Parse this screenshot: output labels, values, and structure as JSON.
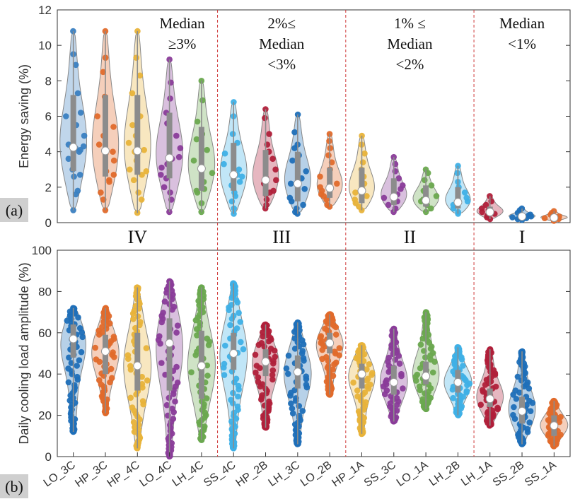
{
  "chart_data": [
    {
      "type": "violin",
      "panel_label": "(a)",
      "ylabel": "Energy saving (%)",
      "ylim": [
        0,
        12
      ],
      "yticks": [
        0,
        2,
        4,
        6,
        8,
        10,
        12
      ],
      "series": [
        {
          "name": "LO_3C",
          "color": "#3a7fc1",
          "min": 0.7,
          "max": 10.8,
          "q1": 2.9,
          "median": 4.25,
          "q3": 7.2,
          "points": [
            10.8,
            9.5,
            8.9,
            7.3,
            6.2,
            6.0,
            5.5,
            4.9,
            4.4,
            4.3,
            4.2,
            4.1,
            4.0,
            3.6,
            3.0,
            2.7,
            2.6,
            1.8,
            1.6,
            0.7
          ]
        },
        {
          "name": "HP_3C",
          "color": "#e06a2b",
          "min": 0.7,
          "max": 10.8,
          "q1": 2.6,
          "median": 4.05,
          "q3": 7.2,
          "points": [
            10.8,
            9.3,
            8.5,
            7.1,
            6.0,
            5.4,
            4.9,
            4.4,
            4.1,
            4.0,
            3.9,
            3.5,
            2.9,
            2.7,
            2.4,
            2.3,
            1.7,
            1.3,
            0.7
          ]
        },
        {
          "name": "HP_4C",
          "color": "#e8b33a",
          "min": 0.55,
          "max": 10.8,
          "q1": 2.7,
          "median": 4.05,
          "q3": 7.2,
          "points": [
            10.8,
            9.3,
            8.3,
            7.3,
            6.0,
            5.5,
            4.9,
            4.5,
            4.1,
            4.0,
            3.5,
            3.0,
            2.9,
            2.7,
            2.4,
            1.7,
            1.3,
            0.55
          ]
        },
        {
          "name": "LO_4C",
          "color": "#8a3c99",
          "min": 0.6,
          "max": 9.2,
          "q1": 2.5,
          "median": 3.65,
          "q3": 6.2,
          "points": [
            9.2,
            7.9,
            7.0,
            6.2,
            5.6,
            4.9,
            4.2,
            3.7,
            3.6,
            3.3,
            3.1,
            2.7,
            2.5,
            2.0,
            1.7,
            1.3,
            0.6
          ]
        },
        {
          "name": "LH_4C",
          "color": "#6aa84f",
          "min": 0.6,
          "max": 8.0,
          "q1": 1.8,
          "median": 3.05,
          "q3": 5.4,
          "points": [
            8.0,
            6.9,
            5.7,
            5.0,
            4.7,
            4.1,
            3.5,
            3.1,
            3.0,
            2.8,
            2.3,
            1.9,
            1.8,
            1.7,
            1.1,
            0.6
          ]
        },
        {
          "name": "SS_4C",
          "color": "#3fb0e6",
          "min": 0.5,
          "max": 6.8,
          "q1": 1.8,
          "median": 2.7,
          "q3": 4.5,
          "points": [
            6.8,
            6.0,
            5.0,
            4.5,
            3.9,
            3.3,
            3.0,
            2.7,
            2.6,
            2.3,
            2.1,
            1.7,
            1.5,
            1.2,
            0.8,
            0.5
          ]
        },
        {
          "name": "HP_2B",
          "color": "#b0203a",
          "min": 0.8,
          "max": 6.4,
          "q1": 1.5,
          "median": 2.4,
          "q3": 4.1,
          "points": [
            6.4,
            5.9,
            5.0,
            4.4,
            4.0,
            3.6,
            3.0,
            2.5,
            2.4,
            2.2,
            1.8,
            1.7,
            1.6,
            1.3,
            1.0,
            0.8
          ]
        },
        {
          "name": "LH_3C",
          "color": "#1f6fb8",
          "min": 0.5,
          "max": 6.1,
          "q1": 1.2,
          "median": 2.2,
          "q3": 4.0,
          "points": [
            6.1,
            5.1,
            4.4,
            4.2,
            3.8,
            3.5,
            2.9,
            2.5,
            2.2,
            1.9,
            1.4,
            1.2,
            1.0,
            0.8,
            0.6,
            0.5
          ]
        },
        {
          "name": "LO_2B",
          "color": "#e06a2b",
          "min": 0.9,
          "max": 5.0,
          "q1": 1.4,
          "median": 1.95,
          "q3": 3.1,
          "points": [
            5.0,
            4.6,
            4.2,
            3.8,
            3.4,
            3.0,
            2.6,
            2.2,
            2.0,
            1.8,
            1.6,
            1.5,
            1.3,
            1.0,
            0.9
          ]
        },
        {
          "name": "HP_1A",
          "color": "#e8b33a",
          "min": 0.7,
          "max": 4.9,
          "q1": 1.1,
          "median": 1.8,
          "q3": 3.1,
          "points": [
            4.9,
            4.4,
            3.9,
            3.4,
            3.0,
            2.6,
            2.2,
            1.9,
            1.7,
            1.5,
            1.3,
            1.1,
            0.9,
            0.7
          ]
        },
        {
          "name": "SS_3C",
          "color": "#8a3c99",
          "min": 0.6,
          "max": 3.7,
          "q1": 1.0,
          "median": 1.45,
          "q3": 2.5,
          "points": [
            3.7,
            3.3,
            2.9,
            2.5,
            2.1,
            1.9,
            1.6,
            1.4,
            1.2,
            1.0,
            0.8,
            0.6
          ]
        },
        {
          "name": "LO_1A",
          "color": "#6aa84f",
          "min": 0.6,
          "max": 3.0,
          "q1": 0.9,
          "median": 1.25,
          "q3": 2.1,
          "points": [
            3.0,
            2.8,
            2.4,
            2.1,
            1.8,
            1.5,
            1.3,
            1.2,
            1.0,
            0.8,
            0.6
          ]
        },
        {
          "name": "LH_2B",
          "color": "#3fb0e6",
          "min": 0.5,
          "max": 3.2,
          "q1": 0.8,
          "median": 1.15,
          "q3": 2.0,
          "points": [
            3.2,
            2.8,
            2.3,
            2.0,
            1.7,
            1.4,
            1.2,
            1.0,
            0.8,
            0.6,
            0.5
          ]
        },
        {
          "name": "LH_1A",
          "color": "#b0203a",
          "min": 0.2,
          "max": 1.5,
          "q1": 0.4,
          "median": 0.6,
          "q3": 0.9,
          "points": [
            1.5,
            1.2,
            1.0,
            0.8,
            0.7,
            0.6,
            0.5,
            0.4,
            0.3,
            0.2
          ]
        },
        {
          "name": "SS_2B",
          "color": "#1f6fb8",
          "min": 0.15,
          "max": 0.8,
          "q1": 0.25,
          "median": 0.35,
          "q3": 0.5,
          "points": [
            0.8,
            0.7,
            0.55,
            0.45,
            0.4,
            0.35,
            0.3,
            0.25,
            0.2,
            0.15
          ]
        },
        {
          "name": "SS_1A",
          "color": "#e06a2b",
          "min": 0.1,
          "max": 0.65,
          "q1": 0.2,
          "median": 0.28,
          "q3": 0.4,
          "points": [
            0.65,
            0.55,
            0.45,
            0.35,
            0.3,
            0.25,
            0.2,
            0.15,
            0.1
          ]
        }
      ],
      "annotations": [
        {
          "lines": [
            "Median",
            "≥3%"
          ]
        },
        {
          "lines": [
            "2%≤",
            "Median",
            "<3%"
          ]
        },
        {
          "lines": [
            "1% ≤",
            "Median",
            "<2%"
          ]
        },
        {
          "lines": [
            "Median",
            "<1%"
          ]
        }
      ],
      "group_labels": [
        "IV",
        "III",
        "II",
        "I"
      ],
      "dividers_after_index": [
        4,
        8,
        12
      ]
    },
    {
      "type": "violin",
      "panel_label": "(b)",
      "ylabel": "Daily cooling load amplitude (%)",
      "ylim": [
        0,
        100
      ],
      "yticks": [
        0,
        20,
        40,
        60,
        80,
        100
      ],
      "categories": [
        "LO_3C",
        "HP_3C",
        "HP_4C",
        "LO_4C",
        "LH_4C",
        "SS_4C",
        "HP_2B",
        "LH_3C",
        "LO_2B",
        "HP_1A",
        "SS_3C",
        "LO_1A",
        "LH_2B",
        "LH_1A",
        "SS_2B",
        "SS_1A"
      ],
      "series": [
        {
          "name": "LO_3C",
          "color": "#1f6fb8",
          "min": 12,
          "max": 72,
          "q1": 48,
          "median": 57,
          "q3": 64
        },
        {
          "name": "HP_3C",
          "color": "#e06a2b",
          "min": 21,
          "max": 72,
          "q1": 40,
          "median": 51,
          "q3": 59
        },
        {
          "name": "HP_4C",
          "color": "#e8b33a",
          "min": 4,
          "max": 82,
          "q1": 32,
          "median": 44,
          "q3": 60
        },
        {
          "name": "LO_4C",
          "color": "#8a3c99",
          "min": 0,
          "max": 85,
          "q1": 32,
          "median": 55,
          "q3": 67
        },
        {
          "name": "LH_4C",
          "color": "#6aa84f",
          "min": 8,
          "max": 82,
          "q1": 28,
          "median": 44,
          "q3": 61
        },
        {
          "name": "SS_4C",
          "color": "#3fb0e6",
          "min": 4,
          "max": 84,
          "q1": 42,
          "median": 50,
          "q3": 60
        },
        {
          "name": "HP_2B",
          "color": "#b0203a",
          "min": 14,
          "max": 64,
          "q1": 39,
          "median": 46,
          "q3": 52
        },
        {
          "name": "LH_3C",
          "color": "#1f6fb8",
          "min": 6,
          "max": 65,
          "q1": 33,
          "median": 41,
          "q3": 49
        },
        {
          "name": "LO_2B",
          "color": "#e06a2b",
          "min": 30,
          "max": 69,
          "q1": 50,
          "median": 55,
          "q3": 60
        },
        {
          "name": "HP_1A",
          "color": "#e8b33a",
          "min": 11,
          "max": 54,
          "q1": 33,
          "median": 40,
          "q3": 45
        },
        {
          "name": "SS_3C",
          "color": "#8a3c99",
          "min": 17,
          "max": 62,
          "q1": 30,
          "median": 36,
          "q3": 44
        },
        {
          "name": "LO_1A",
          "color": "#6aa84f",
          "min": 23,
          "max": 70,
          "q1": 35,
          "median": 39,
          "q3": 46
        },
        {
          "name": "LH_2B",
          "color": "#3fb0e6",
          "min": 20,
          "max": 53,
          "q1": 31,
          "median": 36,
          "q3": 42
        },
        {
          "name": "LH_1A",
          "color": "#b0203a",
          "min": 15,
          "max": 52,
          "q1": 24,
          "median": 28,
          "q3": 33
        },
        {
          "name": "SS_2B",
          "color": "#1f6fb8",
          "min": 6,
          "max": 51,
          "q1": 16,
          "median": 22,
          "q3": 29
        },
        {
          "name": "SS_1A",
          "color": "#e06a2b",
          "min": 5,
          "max": 27,
          "q1": 10,
          "median": 15,
          "q3": 20
        }
      ]
    }
  ]
}
